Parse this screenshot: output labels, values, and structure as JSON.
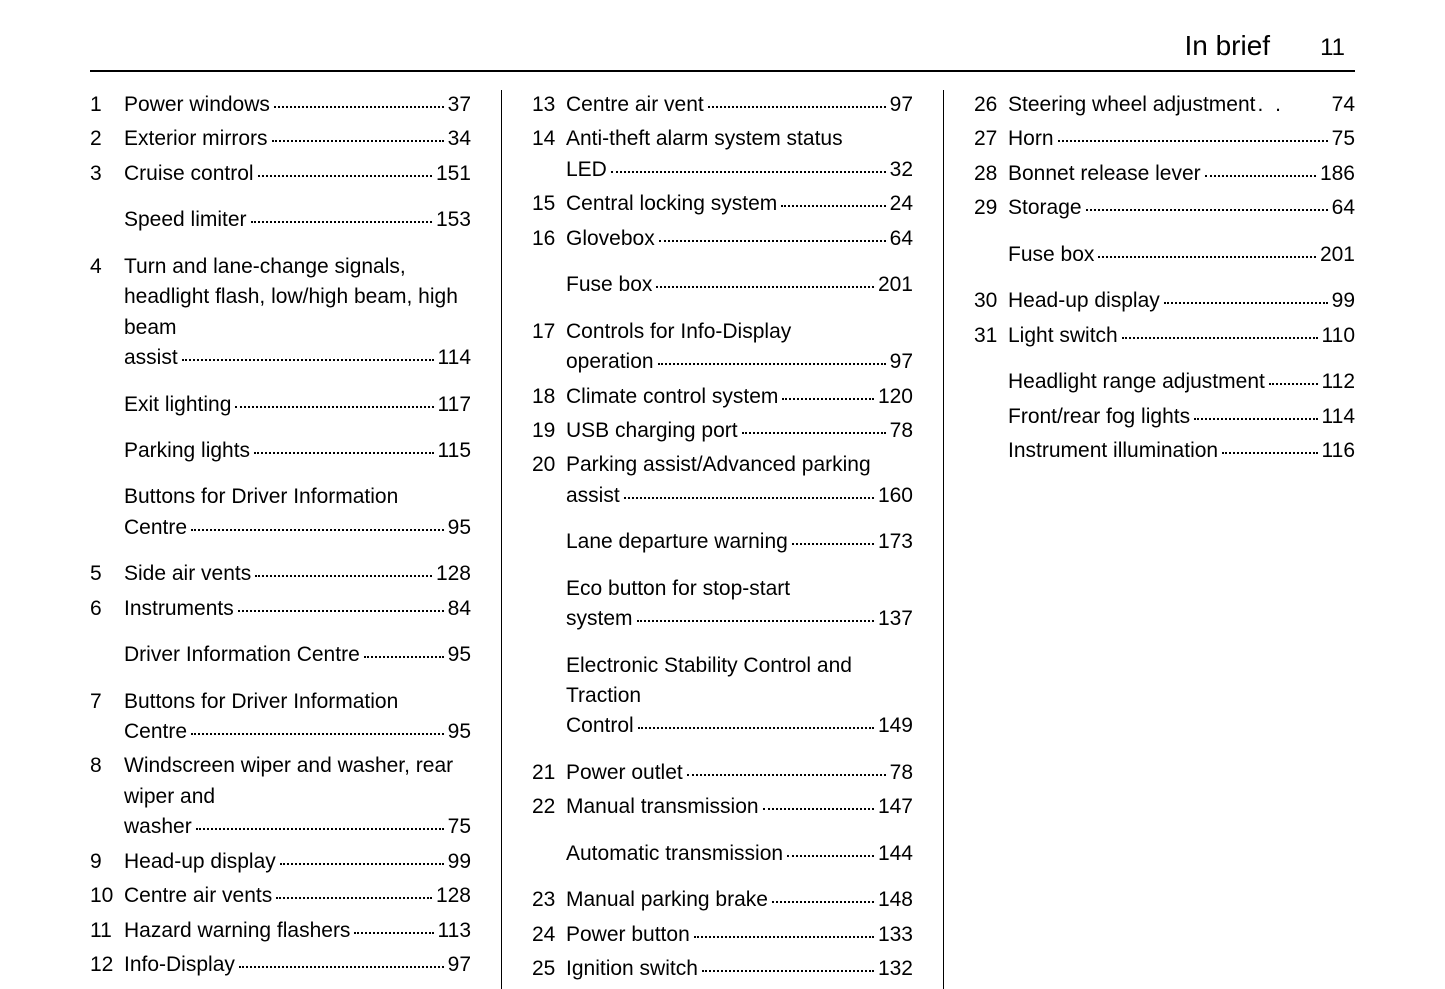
{
  "header": {
    "title": "In brief",
    "page": "11"
  },
  "columns": [
    [
      {
        "num": "1",
        "text": "Power windows",
        "page": "37"
      },
      {
        "num": "2",
        "text": "Exterior mirrors",
        "page": "34"
      },
      {
        "num": "3",
        "text": "Cruise control",
        "page": "151"
      },
      {
        "num": "",
        "text": "Speed limiter",
        "page": "153"
      },
      {
        "num": "4",
        "text": "Turn and lane-change signals, headlight flash, low/high beam, high beam assist",
        "page": "114"
      },
      {
        "num": "",
        "text": "Exit lighting",
        "page": "117"
      },
      {
        "num": "",
        "text": "Parking lights",
        "page": "115"
      },
      {
        "num": "",
        "text": "Buttons for Driver Information Centre",
        "page": "95"
      },
      {
        "num": "5",
        "text": "Side air vents",
        "page": "128"
      },
      {
        "num": "6",
        "text": "Instruments",
        "page": "84"
      },
      {
        "num": "",
        "text": "Driver Information Centre",
        "page": "95"
      },
      {
        "num": "7",
        "text": "Buttons for Driver Information Centre",
        "page": "95"
      },
      {
        "num": "8",
        "text": "Windscreen wiper and washer, rear wiper and washer",
        "page": "75"
      },
      {
        "num": "9",
        "text": "Head-up display",
        "page": "99"
      },
      {
        "num": "10",
        "text": "Centre air vents",
        "page": "128"
      },
      {
        "num": "11",
        "text": "Hazard warning flashers",
        "page": "113"
      },
      {
        "num": "12",
        "text": "Info-Display",
        "page": "97"
      }
    ],
    [
      {
        "num": "13",
        "text": "Centre air vent",
        "page": "97"
      },
      {
        "num": "14",
        "text": "Anti-theft alarm system status LED",
        "page": "32"
      },
      {
        "num": "15",
        "text": "Central locking system",
        "page": "24"
      },
      {
        "num": "16",
        "text": "Glovebox",
        "page": "64"
      },
      {
        "num": "",
        "text": "Fuse box",
        "page": "201"
      },
      {
        "num": "17",
        "text": "Controls for Info-Display operation",
        "page": "97"
      },
      {
        "num": "18",
        "text": "Climate control system",
        "page": "120"
      },
      {
        "num": "19",
        "text": "USB charging port",
        "page": "78"
      },
      {
        "num": "20",
        "text": "Parking assist/Advanced parking assist",
        "page": "160"
      },
      {
        "num": "",
        "text": "Lane departure warning",
        "page": "173"
      },
      {
        "num": "",
        "text": "Eco button for stop-start system",
        "page": "137"
      },
      {
        "num": "",
        "text": "Electronic Stability Control and Traction Control",
        "page": "149"
      },
      {
        "num": "21",
        "text": "Power outlet",
        "page": "78"
      },
      {
        "num": "22",
        "text": "Manual transmission",
        "page": "147"
      },
      {
        "num": "",
        "text": "Automatic transmission",
        "page": "144"
      },
      {
        "num": "23",
        "text": "Manual parking brake",
        "page": "148"
      },
      {
        "num": "24",
        "text": "Power button",
        "page": "133"
      },
      {
        "num": "25",
        "text": "Ignition switch",
        "page": "132"
      }
    ],
    [
      {
        "num": "26",
        "text": "Steering wheel adjustment",
        "page": "74",
        "sparse": true
      },
      {
        "num": "27",
        "text": "Horn",
        "page": "75"
      },
      {
        "num": "28",
        "text": "Bonnet release lever",
        "page": "186"
      },
      {
        "num": "29",
        "text": "Storage",
        "page": "64"
      },
      {
        "num": "",
        "text": "Fuse box",
        "page": "201"
      },
      {
        "num": "30",
        "text": "Head-up display",
        "page": "99"
      },
      {
        "num": "31",
        "text": "Light switch",
        "page": "110"
      },
      {
        "num": "",
        "text": "Headlight range adjustment",
        "page": "112"
      },
      {
        "num": "",
        "text": "Front/rear fog lights",
        "page": "114"
      },
      {
        "num": "",
        "text": "Instrument illumination",
        "page": "116"
      }
    ]
  ],
  "spacing_after": {
    "0": [
      2,
      3,
      4,
      5,
      6,
      7,
      9,
      10
    ],
    "1": [
      3,
      4,
      8,
      9,
      10,
      11,
      13,
      14
    ],
    "2": [
      3,
      4,
      6
    ]
  }
}
